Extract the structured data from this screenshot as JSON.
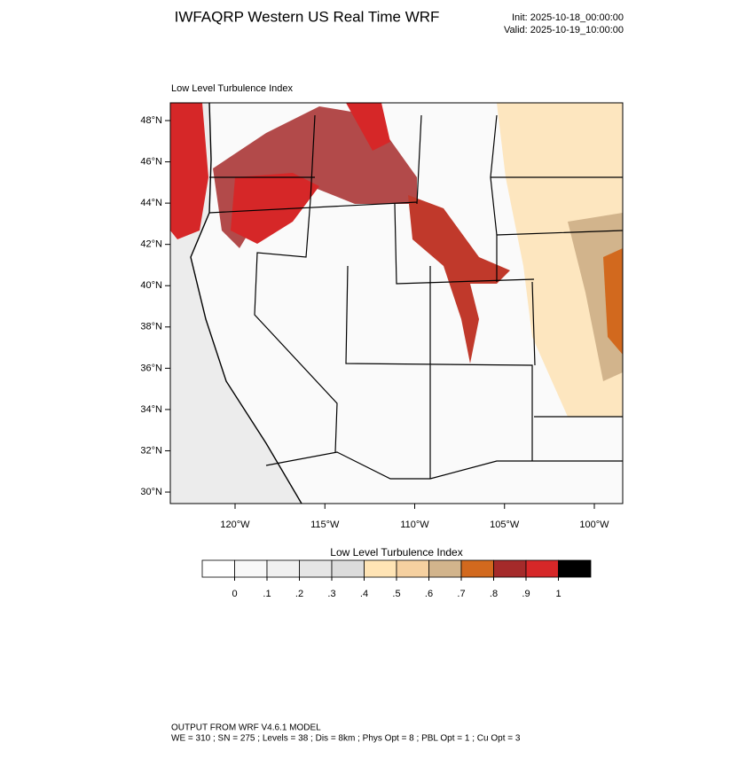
{
  "header": {
    "title": "IWFAQRP Western US Real Time WRF",
    "init": "Init: 2025-10-18_00:00:00",
    "valid": "Valid: 2025-10-19_10:00:00"
  },
  "map": {
    "subtitle": "Low Level Turbulence Index",
    "lat_ticks": [
      {
        "value": 48,
        "label": "48°N"
      },
      {
        "value": 46,
        "label": "46°N"
      },
      {
        "value": 44,
        "label": "44°N"
      },
      {
        "value": 42,
        "label": "42°N"
      },
      {
        "value": 40,
        "label": "40°N"
      },
      {
        "value": 38,
        "label": "38°N"
      },
      {
        "value": 36,
        "label": "36°N"
      },
      {
        "value": 34,
        "label": "34°N"
      },
      {
        "value": 32,
        "label": "32°N"
      },
      {
        "value": 30,
        "label": "30°N"
      }
    ],
    "lon_ticks": [
      {
        "value": -120,
        "label": "120°W"
      },
      {
        "value": -115,
        "label": "115°W"
      },
      {
        "value": -110,
        "label": "110°W"
      },
      {
        "value": -105,
        "label": "105°W"
      },
      {
        "value": -100,
        "label": "100°W"
      }
    ]
  },
  "colorbar": {
    "title": "Low Level Turbulence Index",
    "colors": [
      "#ffffff",
      "#f8f8f8",
      "#f0f0f0",
      "#e6e6e6",
      "#dcdcdc",
      "#ffe4b5",
      "#f5d0a0",
      "#d2b48c",
      "#d2691e",
      "#a52a2a",
      "#d62728",
      "#000000"
    ],
    "ticks": [
      0,
      {
        "value": 0.1,
        "label": ".1"
      },
      {
        "value": 0.2,
        "label": ".2"
      },
      {
        "value": 0.3,
        "label": ".3"
      },
      {
        "value": 0.4,
        "label": ".4"
      },
      {
        "value": 0.5,
        "label": ".5"
      },
      {
        "value": 0.6,
        "label": ".6"
      },
      {
        "value": 0.7,
        "label": ".7"
      },
      {
        "value": 0.8,
        "label": ".8"
      },
      {
        "value": 0.9,
        "label": ".9"
      },
      1
    ]
  },
  "footer": {
    "line1": "OUTPUT FROM WRF V4.6.1 MODEL",
    "line2": "WE = 310 ; SN = 275 ; Levels = 38 ; Dis = 8km ; Phys Opt = 8 ; PBL Opt = 1 ; Cu Opt = 3"
  }
}
